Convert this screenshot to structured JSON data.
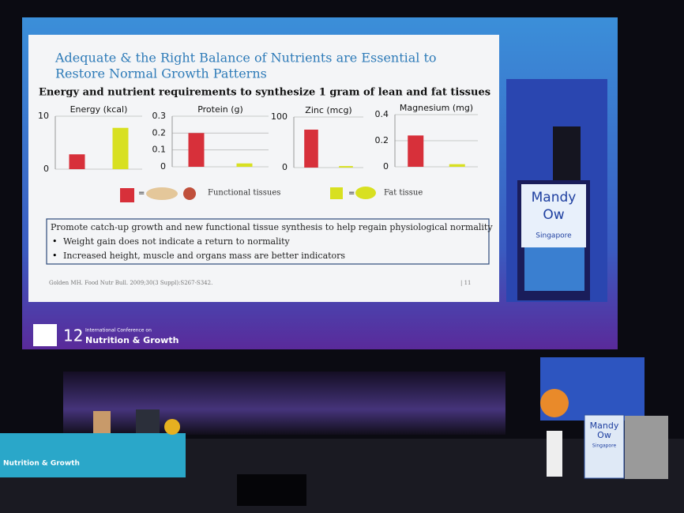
{
  "slide": {
    "title_lines": [
      "Adequate & the Right Balance of Nutrients are Essential to",
      "Restore Normal Growth Patterns"
    ],
    "subtitle": "Energy and nutrient requirements to synthesize 1 gram of lean and fat tissues",
    "charts": [
      {
        "type": "bar",
        "title": "Energy (kcal)",
        "values": [
          2.8,
          7.8
        ],
        "colors": [
          "#d7303a",
          "#d8e021"
        ],
        "ylim": [
          0,
          10
        ],
        "yticks": [
          0,
          10
        ],
        "grid": true
      },
      {
        "type": "bar",
        "title": "Protein (g)",
        "values": [
          0.2,
          0.02
        ],
        "colors": [
          "#d7303a",
          "#d8e021"
        ],
        "ylim": [
          0,
          0.3
        ],
        "yticks": [
          0,
          0.1,
          0.2,
          0.3
        ],
        "grid": true
      },
      {
        "type": "bar",
        "title": "Zinc (mcg)",
        "values": [
          75,
          3
        ],
        "colors": [
          "#d7303a",
          "#d8e021"
        ],
        "ylim": [
          0,
          100
        ],
        "yticks": [
          0,
          100
        ],
        "grid": true
      },
      {
        "type": "bar",
        "title": "Magnesium (mg)",
        "values": [
          0.24,
          0.02
        ],
        "colors": [
          "#d7303a",
          "#d8e021"
        ],
        "ylim": [
          0,
          0.4
        ],
        "yticks": [
          0,
          0.2,
          0.4
        ],
        "grid": true
      }
    ],
    "legend": [
      {
        "symbol": "=",
        "label": "Functional tissues"
      },
      {
        "symbol": "=",
        "label": "Fat tissue"
      }
    ],
    "box": {
      "heading": "Promote catch-up growth and new functional tissue synthesis to help regain physiological normality",
      "bullets": [
        "Weight gain does not indicate a return to normality",
        "Increased height, muscle and organs mass are better indicators"
      ]
    },
    "citation": "Golden MH. Food Nutr Bull. 2009;30(3 Suppl):S267-S342.",
    "page": "| 11"
  },
  "screen_footer": {
    "number": "12",
    "conference": "International Conference on",
    "name": "Nutrition & Growth"
  },
  "side_screen": {
    "name_lines": [
      "Mandy",
      "Ow"
    ],
    "country": "Singapore"
  },
  "stage": {
    "banner": "Nutrition & Growth",
    "podium_name_lines": [
      "Mandy",
      "Ow"
    ],
    "podium_country": "Singapore"
  }
}
